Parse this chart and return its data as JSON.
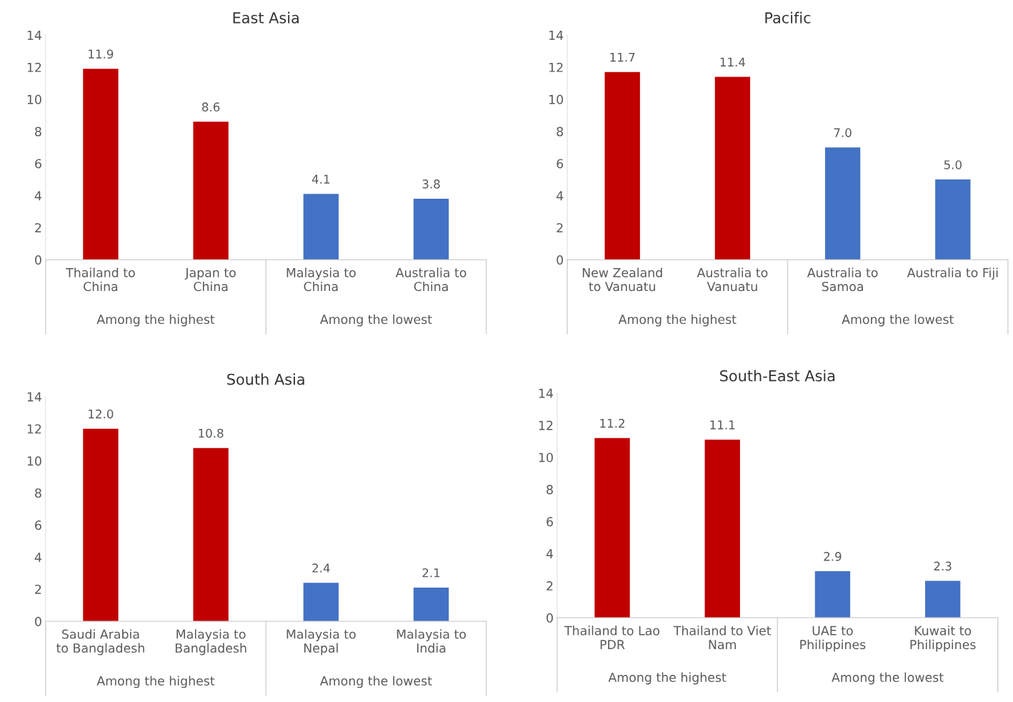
{
  "chart_data": [
    {
      "type": "bar",
      "title": "East Asia",
      "categories": [
        "Thailand to\nChina",
        "Japan to\nChina",
        "Malaysia to\nChina",
        "Australia to\nChina"
      ],
      "values": [
        11.9,
        8.6,
        4.1,
        3.8
      ],
      "value_labels": [
        "11.9",
        "8.6",
        "4.1",
        "3.8"
      ],
      "colors": [
        "#c00000",
        "#c00000",
        "#4472c4",
        "#4472c4"
      ],
      "ylim": [
        0,
        14
      ],
      "yticks": [
        0,
        2,
        4,
        6,
        8,
        10,
        12,
        14
      ],
      "annotations": [
        "Among the highest",
        "Among the lowest"
      ]
    },
    {
      "type": "bar",
      "title": "Pacific",
      "categories": [
        "New Zealand\nto Vanuatu",
        "Australia to\nVanuatu",
        "Australia to\nSamoa",
        "Australia to Fiji"
      ],
      "values": [
        11.7,
        11.4,
        7.0,
        5.0
      ],
      "value_labels": [
        "11.7",
        "11.4",
        "7.0",
        "5.0"
      ],
      "colors": [
        "#c00000",
        "#c00000",
        "#4472c4",
        "#4472c4"
      ],
      "ylim": [
        0,
        14
      ],
      "yticks": [
        0,
        2,
        4,
        6,
        8,
        10,
        12,
        14
      ],
      "annotations": [
        "Among the highest",
        "Among the lowest"
      ]
    },
    {
      "type": "bar",
      "title": "South Asia",
      "categories": [
        "Saudi Arabia\nto Bangladesh",
        "Malaysia to\nBangladesh",
        "Malaysia to\nNepal",
        "Malaysia to\nIndia"
      ],
      "values": [
        12.0,
        10.8,
        2.4,
        2.1
      ],
      "value_labels": [
        "12.0",
        "10.8",
        "2.4",
        "2.1"
      ],
      "colors": [
        "#c00000",
        "#c00000",
        "#4472c4",
        "#4472c4"
      ],
      "ylim": [
        0,
        14
      ],
      "yticks": [
        0,
        2,
        4,
        6,
        8,
        10,
        12,
        14
      ],
      "annotations": [
        "Among the highest",
        "Among the lowest"
      ]
    },
    {
      "type": "bar",
      "title": "South-East Asia",
      "categories": [
        "Thailand to Lao\nPDR",
        "Thailand to Viet\nNam",
        "UAE to\nPhilippines",
        "Kuwait to\nPhilippines"
      ],
      "values": [
        11.2,
        11.1,
        2.9,
        2.3
      ],
      "value_labels": [
        "11.2",
        "11.1",
        "2.9",
        "2.3"
      ],
      "colors": [
        "#c00000",
        "#c00000",
        "#4472c4",
        "#4472c4"
      ],
      "ylim": [
        0,
        14
      ],
      "yticks": [
        0,
        2,
        4,
        6,
        8,
        10,
        12,
        14
      ],
      "annotations": [
        "Among the highest",
        "Among the lowest"
      ]
    }
  ]
}
